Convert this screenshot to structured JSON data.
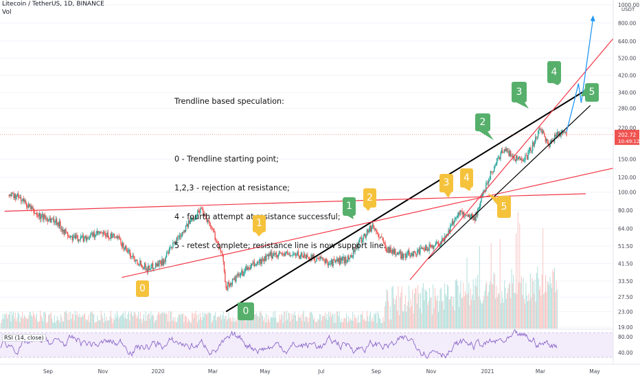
{
  "header": {
    "symbol_line": "Litecoin / TetherUS, 1D, BINANCE",
    "vol_label": "Vol"
  },
  "note": {
    "title": "Trendline based speculation:",
    "lines": [
      "0 - Trendline starting point;",
      "1,2,3 - rejection at resistance;",
      "4 - fourth attempt at resistance successful;",
      "5 - retest complete; resistance line is now support line."
    ]
  },
  "price_axis": {
    "currency": "USDT",
    "ticks": [
      "1000.00",
      "800.00",
      "640.00",
      "520.00",
      "420.00",
      "340.00",
      "280.00",
      "220.00",
      "150.00",
      "120.00",
      "100.00",
      "80.00",
      "64.00",
      "51.50",
      "41.50",
      "33.50",
      "27.50",
      "23.00",
      "19.00"
    ],
    "current_price": "202.72",
    "countdown": "10:49:12"
  },
  "rsi": {
    "label": "RSI (14, close)",
    "ticks": [
      "80.00",
      "40.00"
    ],
    "upper": 70,
    "lower": 30
  },
  "time_axis": {
    "ticks": [
      "Sep",
      "Nov",
      "2020",
      "Mar",
      "May",
      "Jul",
      "Sep",
      "Nov",
      "2021",
      "Mar",
      "May"
    ]
  },
  "markers": [
    {
      "label": "0",
      "color": "yellow"
    },
    {
      "label": "0",
      "color": "green"
    },
    {
      "label": "1",
      "color": "yellow"
    },
    {
      "label": "1",
      "color": "green"
    },
    {
      "label": "2",
      "color": "yellow"
    },
    {
      "label": "2",
      "color": "green"
    },
    {
      "label": "3",
      "color": "yellow"
    },
    {
      "label": "3",
      "color": "green"
    },
    {
      "label": "4",
      "color": "yellow"
    },
    {
      "label": "4",
      "color": "green"
    },
    {
      "label": "5",
      "color": "yellow"
    },
    {
      "label": "5",
      "color": "green"
    }
  ],
  "colors": {
    "up": "#26a69a",
    "down": "#ef5350",
    "red_line": "#f23645",
    "black_line": "#000000",
    "projection": "#2196f3",
    "rsi_line": "#7e57c2",
    "rsi_band": "#e9dcf7",
    "green_marker": "#56b06b",
    "yellow_marker": "#f5c23c"
  },
  "chart_data": {
    "type": "candlestick",
    "symbol": "LTCUSDT",
    "interval": "1D",
    "scale": "log",
    "price_range": [
      19,
      1000
    ],
    "time_range": [
      "2019-08",
      "2021-05"
    ],
    "close_path": [
      {
        "date": "2019-07-20",
        "close": 97
      },
      {
        "date": "2019-08-01",
        "close": 93
      },
      {
        "date": "2019-08-20",
        "close": 75
      },
      {
        "date": "2019-09-10",
        "close": 70
      },
      {
        "date": "2019-09-24",
        "close": 57
      },
      {
        "date": "2019-10-10",
        "close": 57
      },
      {
        "date": "2019-10-26",
        "close": 60
      },
      {
        "date": "2019-11-15",
        "close": 57
      },
      {
        "date": "2019-11-30",
        "close": 46
      },
      {
        "date": "2019-12-18",
        "close": 39
      },
      {
        "date": "2020-01-05",
        "close": 43
      },
      {
        "date": "2020-01-20",
        "close": 57
      },
      {
        "date": "2020-02-05",
        "close": 72
      },
      {
        "date": "2020-02-15",
        "close": 82
      },
      {
        "date": "2020-02-28",
        "close": 62
      },
      {
        "date": "2020-03-10",
        "close": 43
      },
      {
        "date": "2020-03-13",
        "close": 31
      },
      {
        "date": "2020-04-05",
        "close": 39
      },
      {
        "date": "2020-05-05",
        "close": 47
      },
      {
        "date": "2020-06-05",
        "close": 46
      },
      {
        "date": "2020-07-05",
        "close": 42
      },
      {
        "date": "2020-07-25",
        "close": 44
      },
      {
        "date": "2020-08-10",
        "close": 58
      },
      {
        "date": "2020-08-20",
        "close": 66
      },
      {
        "date": "2020-09-05",
        "close": 50
      },
      {
        "date": "2020-09-20",
        "close": 46
      },
      {
        "date": "2020-10-10",
        "close": 48
      },
      {
        "date": "2020-11-05",
        "close": 55
      },
      {
        "date": "2020-11-22",
        "close": 78
      },
      {
        "date": "2020-12-10",
        "close": 73
      },
      {
        "date": "2020-12-25",
        "close": 120
      },
      {
        "date": "2021-01-10",
        "close": 170
      },
      {
        "date": "2021-01-25",
        "close": 150
      },
      {
        "date": "2021-02-05",
        "close": 155
      },
      {
        "date": "2021-02-20",
        "close": 220
      },
      {
        "date": "2021-03-01",
        "close": 175
      },
      {
        "date": "2021-03-10",
        "close": 210
      },
      {
        "date": "2021-03-20",
        "close": 200
      }
    ],
    "trendlines": [
      {
        "color": "black",
        "from": {
          "date": "2020-03-13",
          "price": 23
        },
        "to": {
          "date": "2021-04-10",
          "price": 350
        }
      },
      {
        "color": "red",
        "from": {
          "date": "2019-11-20",
          "price": 35
        },
        "to": {
          "date": "2021-06-10",
          "price": 145
        }
      },
      {
        "color": "red",
        "from": {
          "date": "2019-07-15",
          "price": 79
        },
        "to": {
          "date": "2021-04-10",
          "price": 98
        }
      },
      {
        "color": "red",
        "from": {
          "date": "2020-09-30",
          "price": 34
        },
        "to": {
          "date": "2021-06-10",
          "price": 1000
        }
      },
      {
        "color": "black",
        "from": {
          "date": "2020-10-20",
          "price": 44
        },
        "to": {
          "date": "2021-04-15",
          "price": 290
        }
      }
    ],
    "projection": [
      {
        "date": "2021-03-20",
        "price": 210
      },
      {
        "date": "2021-03-28",
        "price": 300
      },
      {
        "date": "2021-04-02",
        "price": 380
      },
      {
        "date": "2021-04-05",
        "price": 300
      },
      {
        "date": "2021-04-18",
        "price": 850
      }
    ]
  }
}
